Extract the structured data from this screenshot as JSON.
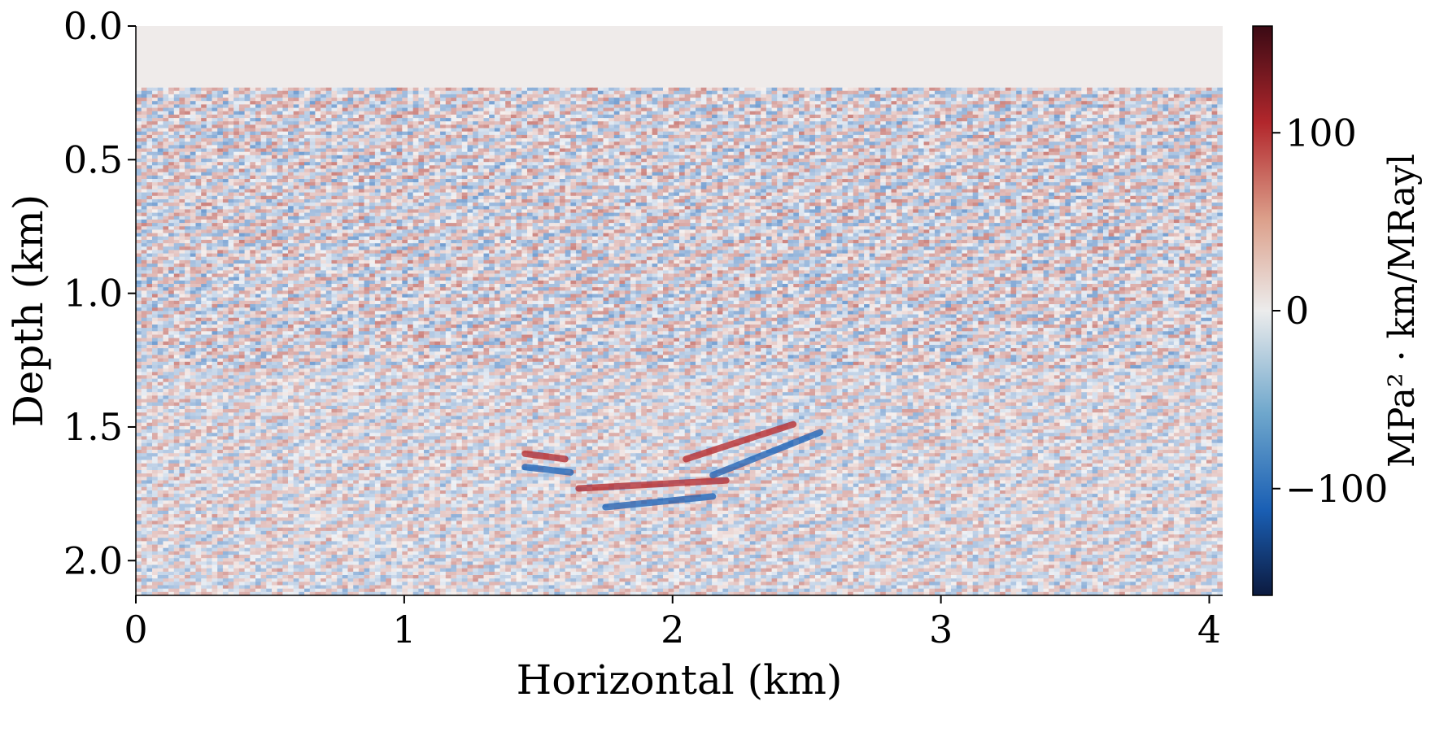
{
  "chart_data": {
    "type": "heatmap",
    "title": "",
    "xlabel": "Horizontal (km)",
    "ylabel": "Depth (km)",
    "xlim": [
      0,
      4.05
    ],
    "ylim": [
      2.13,
      0.0
    ],
    "x_ticks": [
      {
        "value": 0,
        "label": "0"
      },
      {
        "value": 1,
        "label": "1"
      },
      {
        "value": 2,
        "label": "2"
      },
      {
        "value": 3,
        "label": "3"
      },
      {
        "value": 4,
        "label": "4"
      }
    ],
    "y_ticks": [
      {
        "value": 0.0,
        "label": "0.0"
      },
      {
        "value": 0.5,
        "label": "0.5"
      },
      {
        "value": 1.0,
        "label": "1.0"
      },
      {
        "value": 1.5,
        "label": "1.5"
      },
      {
        "value": 2.0,
        "label": "2.0"
      }
    ],
    "water_layer_depth": 0.23,
    "colorbar": {
      "label": "MPa² · km/MRayl",
      "range": [
        -160,
        160
      ],
      "ticks": [
        {
          "value": 100,
          "label": "100"
        },
        {
          "value": 0,
          "label": "0"
        },
        {
          "value": -100,
          "label": "−100"
        }
      ],
      "colormap": "RdBu_r"
    },
    "grid": false,
    "legend": "none"
  }
}
